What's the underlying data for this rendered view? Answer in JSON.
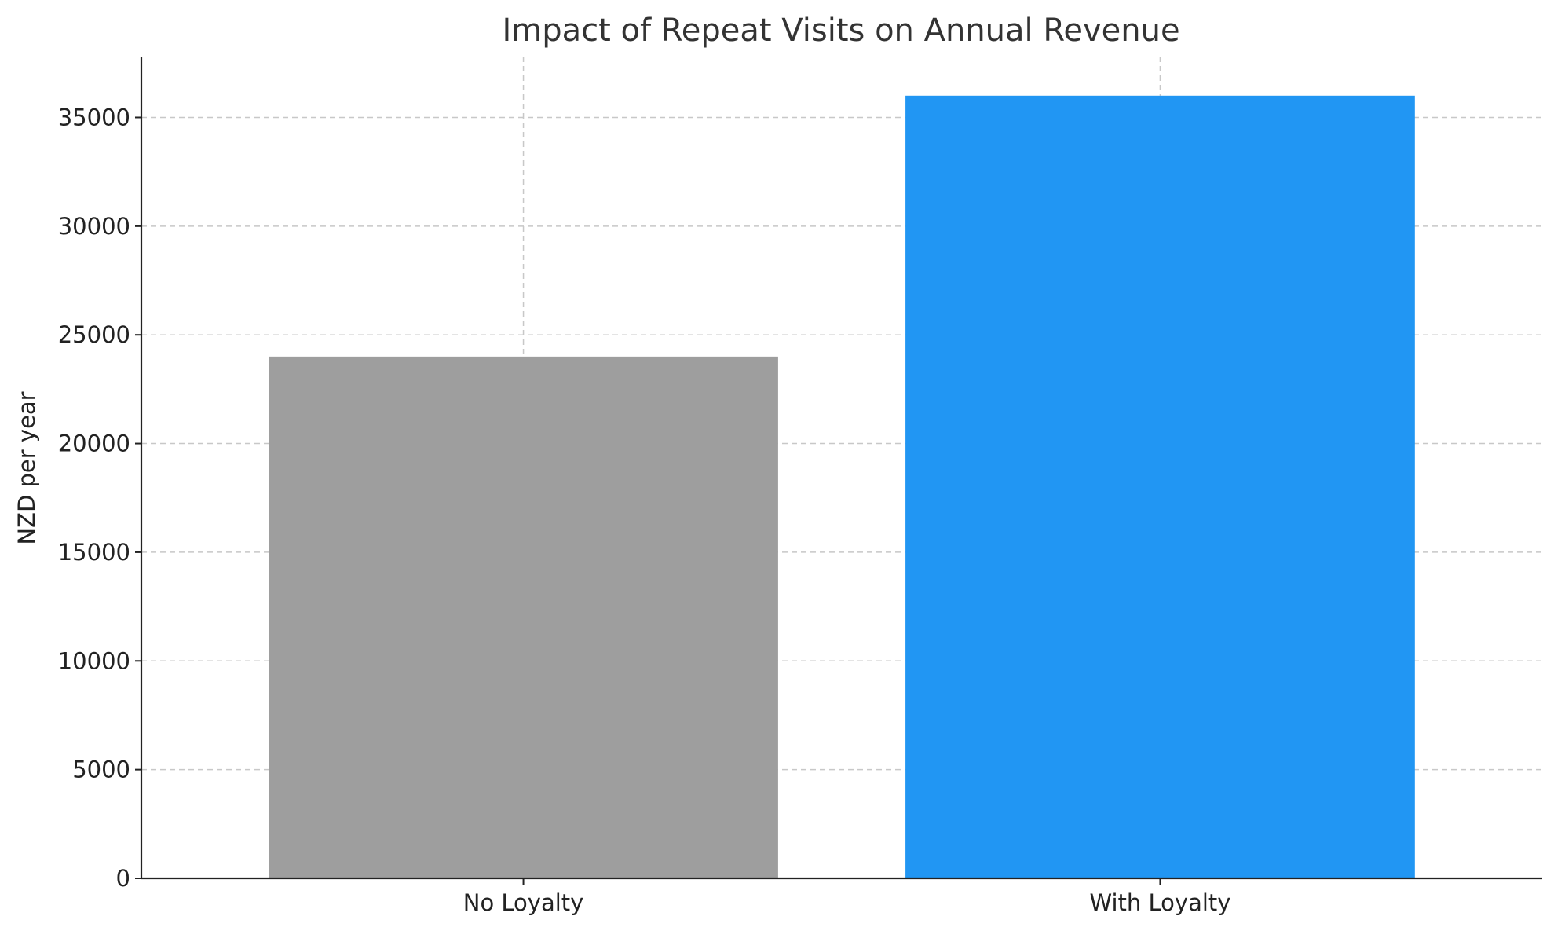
{
  "chart_data": {
    "type": "bar",
    "title": "Impact of Repeat Visits on Annual Revenue",
    "xlabel": "",
    "ylabel": "NZD per year",
    "categories": [
      "No Loyalty",
      "With Loyalty"
    ],
    "values": [
      24000,
      36000
    ],
    "colors": [
      "#9e9e9e",
      "#2196f3"
    ],
    "ylim": [
      0,
      37800
    ],
    "yticks": [
      0,
      5000,
      10000,
      15000,
      20000,
      25000,
      30000,
      35000
    ],
    "grid": true
  }
}
